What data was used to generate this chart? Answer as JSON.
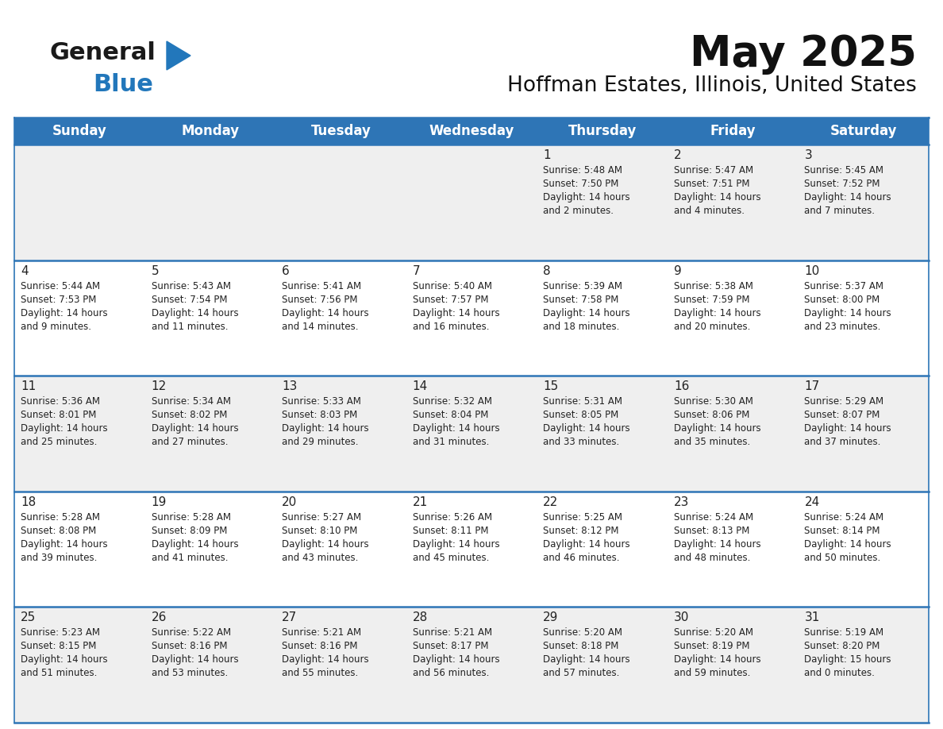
{
  "title": "May 2025",
  "subtitle": "Hoffman Estates, Illinois, United States",
  "header_color": "#2E75B6",
  "header_text_color": "#FFFFFF",
  "cell_bg_even": "#EFEFEF",
  "cell_bg_odd": "#FFFFFF",
  "border_color": "#2E75B6",
  "day_headers": [
    "Sunday",
    "Monday",
    "Tuesday",
    "Wednesday",
    "Thursday",
    "Friday",
    "Saturday"
  ],
  "days": [
    {
      "day": 1,
      "col": 4,
      "row": 0,
      "sunrise": "5:48 AM",
      "sunset": "7:50 PM",
      "daylight": "14 hours and 2 minutes."
    },
    {
      "day": 2,
      "col": 5,
      "row": 0,
      "sunrise": "5:47 AM",
      "sunset": "7:51 PM",
      "daylight": "14 hours and 4 minutes."
    },
    {
      "day": 3,
      "col": 6,
      "row": 0,
      "sunrise": "5:45 AM",
      "sunset": "7:52 PM",
      "daylight": "14 hours and 7 minutes."
    },
    {
      "day": 4,
      "col": 0,
      "row": 1,
      "sunrise": "5:44 AM",
      "sunset": "7:53 PM",
      "daylight": "14 hours and 9 minutes."
    },
    {
      "day": 5,
      "col": 1,
      "row": 1,
      "sunrise": "5:43 AM",
      "sunset": "7:54 PM",
      "daylight": "14 hours and 11 minutes."
    },
    {
      "day": 6,
      "col": 2,
      "row": 1,
      "sunrise": "5:41 AM",
      "sunset": "7:56 PM",
      "daylight": "14 hours and 14 minutes."
    },
    {
      "day": 7,
      "col": 3,
      "row": 1,
      "sunrise": "5:40 AM",
      "sunset": "7:57 PM",
      "daylight": "14 hours and 16 minutes."
    },
    {
      "day": 8,
      "col": 4,
      "row": 1,
      "sunrise": "5:39 AM",
      "sunset": "7:58 PM",
      "daylight": "14 hours and 18 minutes."
    },
    {
      "day": 9,
      "col": 5,
      "row": 1,
      "sunrise": "5:38 AM",
      "sunset": "7:59 PM",
      "daylight": "14 hours and 20 minutes."
    },
    {
      "day": 10,
      "col": 6,
      "row": 1,
      "sunrise": "5:37 AM",
      "sunset": "8:00 PM",
      "daylight": "14 hours and 23 minutes."
    },
    {
      "day": 11,
      "col": 0,
      "row": 2,
      "sunrise": "5:36 AM",
      "sunset": "8:01 PM",
      "daylight": "14 hours and 25 minutes."
    },
    {
      "day": 12,
      "col": 1,
      "row": 2,
      "sunrise": "5:34 AM",
      "sunset": "8:02 PM",
      "daylight": "14 hours and 27 minutes."
    },
    {
      "day": 13,
      "col": 2,
      "row": 2,
      "sunrise": "5:33 AM",
      "sunset": "8:03 PM",
      "daylight": "14 hours and 29 minutes."
    },
    {
      "day": 14,
      "col": 3,
      "row": 2,
      "sunrise": "5:32 AM",
      "sunset": "8:04 PM",
      "daylight": "14 hours and 31 minutes."
    },
    {
      "day": 15,
      "col": 4,
      "row": 2,
      "sunrise": "5:31 AM",
      "sunset": "8:05 PM",
      "daylight": "14 hours and 33 minutes."
    },
    {
      "day": 16,
      "col": 5,
      "row": 2,
      "sunrise": "5:30 AM",
      "sunset": "8:06 PM",
      "daylight": "14 hours and 35 minutes."
    },
    {
      "day": 17,
      "col": 6,
      "row": 2,
      "sunrise": "5:29 AM",
      "sunset": "8:07 PM",
      "daylight": "14 hours and 37 minutes."
    },
    {
      "day": 18,
      "col": 0,
      "row": 3,
      "sunrise": "5:28 AM",
      "sunset": "8:08 PM",
      "daylight": "14 hours and 39 minutes."
    },
    {
      "day": 19,
      "col": 1,
      "row": 3,
      "sunrise": "5:28 AM",
      "sunset": "8:09 PM",
      "daylight": "14 hours and 41 minutes."
    },
    {
      "day": 20,
      "col": 2,
      "row": 3,
      "sunrise": "5:27 AM",
      "sunset": "8:10 PM",
      "daylight": "14 hours and 43 minutes."
    },
    {
      "day": 21,
      "col": 3,
      "row": 3,
      "sunrise": "5:26 AM",
      "sunset": "8:11 PM",
      "daylight": "14 hours and 45 minutes."
    },
    {
      "day": 22,
      "col": 4,
      "row": 3,
      "sunrise": "5:25 AM",
      "sunset": "8:12 PM",
      "daylight": "14 hours and 46 minutes."
    },
    {
      "day": 23,
      "col": 5,
      "row": 3,
      "sunrise": "5:24 AM",
      "sunset": "8:13 PM",
      "daylight": "14 hours and 48 minutes."
    },
    {
      "day": 24,
      "col": 6,
      "row": 3,
      "sunrise": "5:24 AM",
      "sunset": "8:14 PM",
      "daylight": "14 hours and 50 minutes."
    },
    {
      "day": 25,
      "col": 0,
      "row": 4,
      "sunrise": "5:23 AM",
      "sunset": "8:15 PM",
      "daylight": "14 hours and 51 minutes."
    },
    {
      "day": 26,
      "col": 1,
      "row": 4,
      "sunrise": "5:22 AM",
      "sunset": "8:16 PM",
      "daylight": "14 hours and 53 minutes."
    },
    {
      "day": 27,
      "col": 2,
      "row": 4,
      "sunrise": "5:21 AM",
      "sunset": "8:16 PM",
      "daylight": "14 hours and 55 minutes."
    },
    {
      "day": 28,
      "col": 3,
      "row": 4,
      "sunrise": "5:21 AM",
      "sunset": "8:17 PM",
      "daylight": "14 hours and 56 minutes."
    },
    {
      "day": 29,
      "col": 4,
      "row": 4,
      "sunrise": "5:20 AM",
      "sunset": "8:18 PM",
      "daylight": "14 hours and 57 minutes."
    },
    {
      "day": 30,
      "col": 5,
      "row": 4,
      "sunrise": "5:20 AM",
      "sunset": "8:19 PM",
      "daylight": "14 hours and 59 minutes."
    },
    {
      "day": 31,
      "col": 6,
      "row": 4,
      "sunrise": "5:19 AM",
      "sunset": "8:20 PM",
      "daylight": "15 hours and 0 minutes."
    }
  ],
  "num_rows": 5,
  "num_cols": 7,
  "logo_color_general": "#1a1a1a",
  "logo_color_blue": "#2277BB",
  "title_fontsize": 38,
  "subtitle_fontsize": 19,
  "header_fontsize": 12,
  "day_num_fontsize": 11,
  "cell_text_fontsize": 8.5
}
